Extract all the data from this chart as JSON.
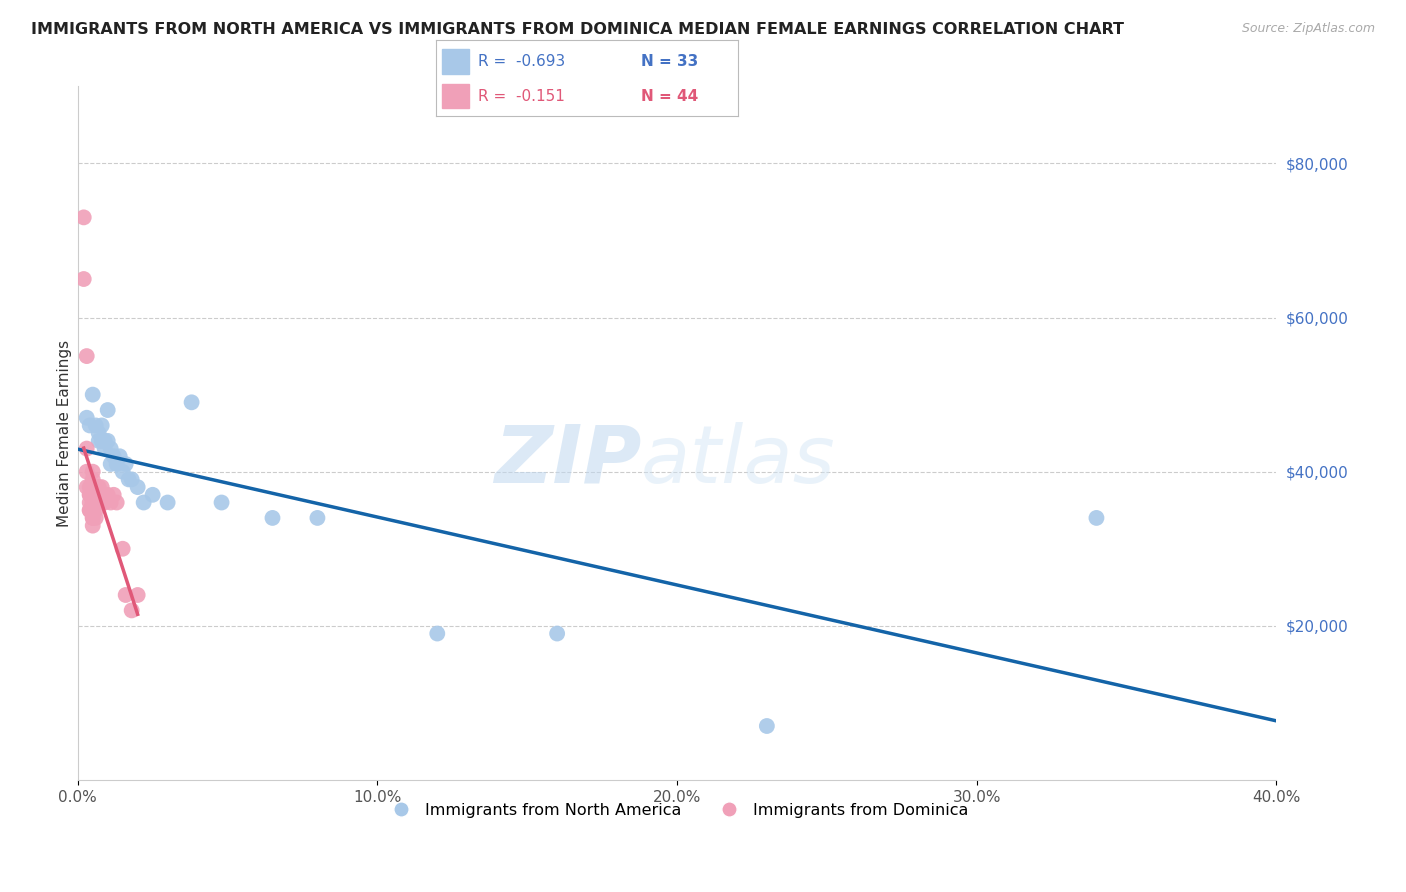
{
  "title": "IMMIGRANTS FROM NORTH AMERICA VS IMMIGRANTS FROM DOMINICA MEDIAN FEMALE EARNINGS CORRELATION CHART",
  "source": "Source: ZipAtlas.com",
  "ylabel": "Median Female Earnings",
  "xlim": [
    0.0,
    0.4
  ],
  "ylim": [
    0,
    90000
  ],
  "yticks": [
    20000,
    40000,
    60000,
    80000
  ],
  "ytick_labels": [
    "$20,000",
    "$40,000",
    "$60,000",
    "$80,000"
  ],
  "xticks": [
    0.0,
    0.1,
    0.2,
    0.3,
    0.4
  ],
  "xtick_labels": [
    "0.0%",
    "10.0%",
    "20.0%",
    "30.0%",
    "40.0%"
  ],
  "watermark_zip": "ZIP",
  "watermark_atlas": "atlas",
  "background": "#ffffff",
  "grid_color": "#cccccc",
  "title_fontsize": 11.5,
  "axis_label_fontsize": 11,
  "tick_fontsize": 11,
  "series_blue": {
    "label": "Immigrants from North America",
    "R": -0.693,
    "N": 33,
    "color": "#a8c8e8",
    "line_color": "#1464a8",
    "x": [
      0.003,
      0.004,
      0.005,
      0.006,
      0.007,
      0.007,
      0.008,
      0.008,
      0.009,
      0.009,
      0.01,
      0.01,
      0.011,
      0.011,
      0.012,
      0.013,
      0.014,
      0.015,
      0.016,
      0.017,
      0.018,
      0.02,
      0.022,
      0.025,
      0.03,
      0.038,
      0.048,
      0.065,
      0.08,
      0.12,
      0.16,
      0.23,
      0.34
    ],
    "y": [
      47000,
      46000,
      50000,
      46000,
      45000,
      44000,
      46000,
      44000,
      43000,
      44000,
      48000,
      44000,
      43000,
      41000,
      42000,
      41000,
      42000,
      40000,
      41000,
      39000,
      39000,
      38000,
      36000,
      37000,
      36000,
      49000,
      36000,
      34000,
      34000,
      19000,
      19000,
      7000,
      34000
    ]
  },
  "series_pink": {
    "label": "Immigrants from Dominica",
    "R": -0.151,
    "N": 44,
    "color": "#f0a0b8",
    "line_color": "#e05878",
    "x": [
      0.002,
      0.002,
      0.003,
      0.003,
      0.003,
      0.003,
      0.004,
      0.004,
      0.004,
      0.004,
      0.004,
      0.004,
      0.005,
      0.005,
      0.005,
      0.005,
      0.005,
      0.005,
      0.005,
      0.005,
      0.005,
      0.005,
      0.005,
      0.005,
      0.005,
      0.005,
      0.006,
      0.006,
      0.006,
      0.006,
      0.006,
      0.007,
      0.007,
      0.008,
      0.008,
      0.009,
      0.01,
      0.011,
      0.012,
      0.013,
      0.015,
      0.016,
      0.018,
      0.02
    ],
    "y": [
      73000,
      65000,
      55000,
      43000,
      40000,
      38000,
      38000,
      37000,
      37000,
      36000,
      35000,
      35000,
      40000,
      39000,
      38000,
      37000,
      37000,
      36000,
      36000,
      36000,
      35000,
      35000,
      35000,
      34000,
      34000,
      33000,
      38000,
      37000,
      36000,
      35000,
      34000,
      38000,
      36000,
      38000,
      37000,
      36000,
      37000,
      36000,
      37000,
      36000,
      30000,
      24000,
      22000,
      24000
    ]
  }
}
